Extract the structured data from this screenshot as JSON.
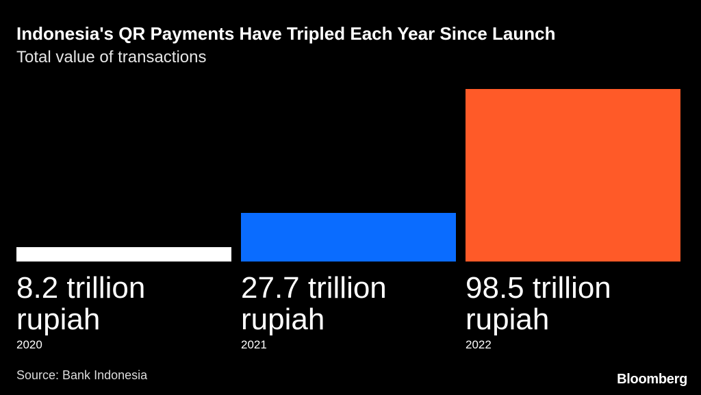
{
  "title": "Indonesia's QR Payments Have Tripled Each Year Since Launch",
  "subtitle": "Total value of transactions",
  "source": "Source: Bank Indonesia",
  "logo": "Bloomberg",
  "chart_data": {
    "type": "bar",
    "title": "Indonesia's QR Payments Have Tripled Each Year Since Launch",
    "subtitle": "Total value of transactions",
    "categories": [
      "2020",
      "2021",
      "2022"
    ],
    "values": [
      8.2,
      27.7,
      98.5
    ],
    "unit": "trillion rupiah",
    "value_labels": [
      {
        "line1": "8.2 trillion",
        "line2": "rupiah"
      },
      {
        "line1": "27.7 trillion",
        "line2": "rupiah"
      },
      {
        "line1": "98.5 trillion",
        "line2": "rupiah"
      }
    ],
    "colors": [
      "#ffffff",
      "#0a6cff",
      "#ff5a28"
    ],
    "ylim": [
      0,
      98.5
    ],
    "grid": false,
    "legend": "none"
  }
}
